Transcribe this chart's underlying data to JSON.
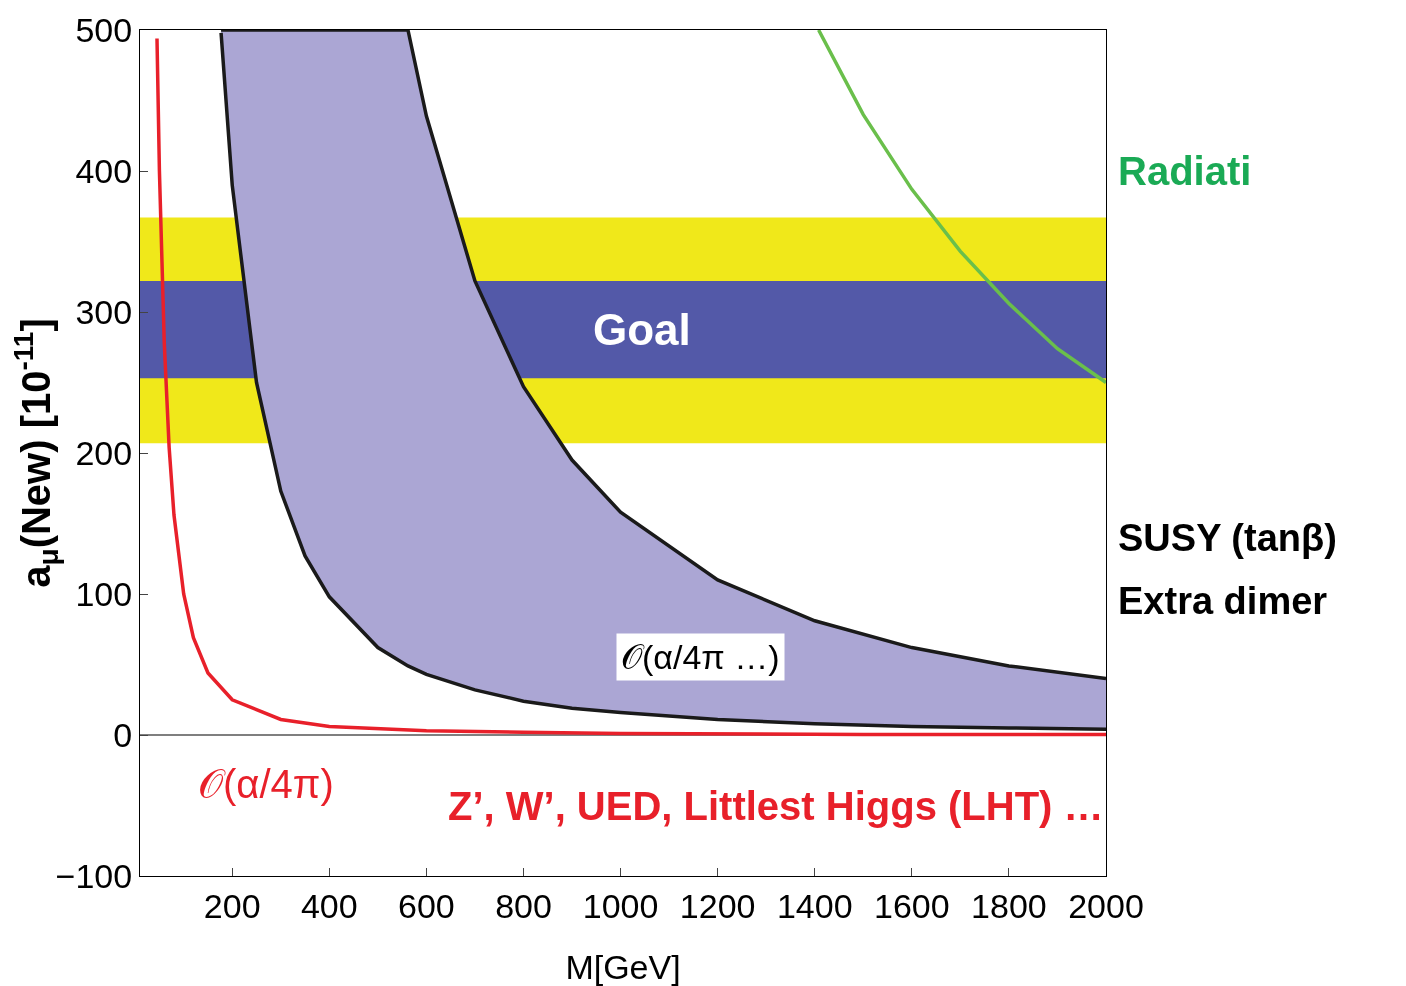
{
  "chart_data": {
    "type": "line",
    "xlabel": "M[GeV]",
    "ylabel": "a$_{μ}$(New) [10$^{-11}$]",
    "xlim": [
      10,
      2000
    ],
    "xticks": [
      200,
      400,
      600,
      800,
      1000,
      1200,
      1400,
      1600,
      1800,
      2000
    ],
    "ylim": [
      -100,
      500
    ],
    "yticks": [
      -100,
      0,
      100,
      200,
      300,
      400,
      500
    ],
    "grid": false,
    "line_style": "solid",
    "marker": "none",
    "series": [
      {
        "color": "#e8202a",
        "x": [
          45,
          50,
          60,
          70,
          80,
          100,
          120,
          150,
          200,
          300,
          400,
          600,
          800,
          1000,
          1500,
          2000
        ],
        "values": [
          494,
          400,
          278,
          204,
          156,
          100,
          69,
          44,
          25,
          11,
          6,
          3,
          2,
          1,
          0.4,
          0.3
        ]
      },
      {
        "color": "#1a1a1a",
        "x": [
          177,
          200,
          250,
          300,
          350,
          400,
          500,
          562,
          600,
          700,
          800,
          900,
          1000,
          1200,
          1400,
          1600,
          1800,
          2000
        ],
        "values": [
          498,
          390,
          250,
          173,
          127,
          98,
          62,
          49,
          43,
          32,
          24,
          19,
          16,
          11,
          8,
          6,
          5,
          4
        ]
      },
      {
        "type": "area",
        "color": "#aba6d4",
        "x": [
          177,
          200,
          250,
          300,
          350,
          400,
          500,
          562,
          600,
          700,
          800,
          900,
          1000,
          1200,
          1400,
          1600,
          1800,
          2000
        ],
        "values": [
          500,
          500,
          500,
          500,
          500,
          500,
          500,
          500,
          439,
          322,
          247,
          195,
          158,
          110,
          81,
          62,
          49,
          40
        ]
      },
      {
        "color": "#6abf4b",
        "x": [
          1408,
          1500,
          1600,
          1700,
          1800,
          1900,
          2000
        ],
        "values": [
          500,
          440,
          387,
          343,
          306,
          274,
          250
        ]
      }
    ],
    "bands": [
      {
        "axis": "y",
        "from": 207,
        "to": 367,
        "color": "#f0e81a"
      },
      {
        "axis": "y",
        "from": 253,
        "to": 322,
        "color": "#5359a8",
        "label": "Goal"
      }
    ],
    "ref_lines": [
      {
        "axis": "y",
        "value": 0,
        "color": "#555555"
      }
    ],
    "annotations": [
      "Radiati",
      "SUSY (tanβ)",
      "Extra dimer",
      "𝒪(α/4π …)",
      "𝒪(α/4π)",
      "Z’, W’, UED, Littlest Higgs (LHT) …"
    ]
  }
}
